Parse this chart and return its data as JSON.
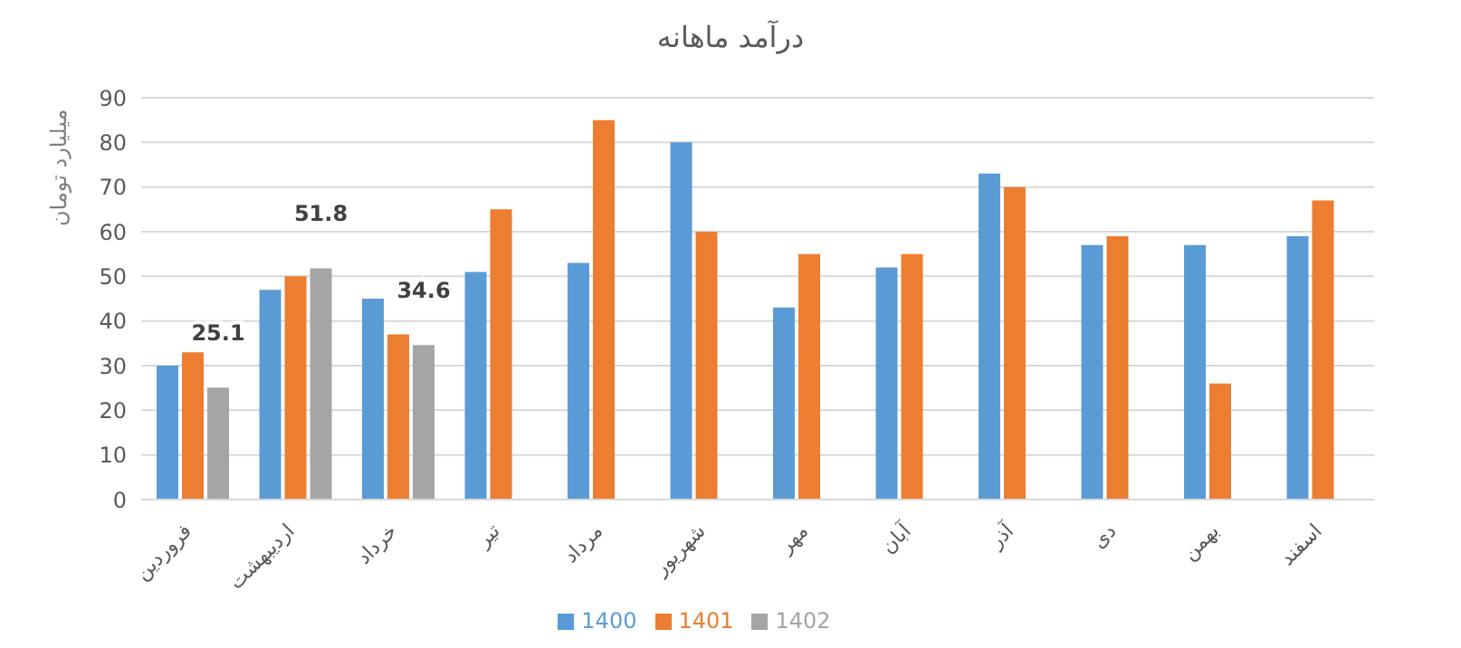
{
  "chart_data": {
    "type": "bar",
    "title": "درآمد ماهانه",
    "ylabel": "میلیارد تومان",
    "categories": [
      "فروردین",
      "اردیبهشت",
      "خرداد",
      "تیر",
      "مرداد",
      "شهریور",
      "مهر",
      "آبان",
      "آذر",
      "دی",
      "بهمن",
      "اسفند"
    ],
    "series": [
      {
        "name": "1400",
        "color": "#5b9bd5",
        "values": [
          30,
          47,
          45,
          51,
          53,
          80,
          43,
          52,
          73,
          57,
          57,
          59
        ]
      },
      {
        "name": "1401",
        "color": "#ed7d31",
        "values": [
          33,
          50,
          37,
          65,
          85,
          60,
          55,
          55,
          70,
          59,
          26,
          67
        ]
      },
      {
        "name": "1402",
        "color": "#a5a5a5",
        "values": [
          25.1,
          51.8,
          34.6,
          null,
          null,
          null,
          null,
          null,
          null,
          null,
          null,
          null
        ],
        "value_labels": [
          "25.1",
          "51.8",
          "34.6",
          null,
          null,
          null,
          null,
          null,
          null,
          null,
          null,
          null
        ]
      }
    ],
    "ylim": [
      0,
      90
    ],
    "yticks": [
      0,
      10,
      20,
      30,
      40,
      50,
      60,
      70,
      80,
      90
    ],
    "grid": "y",
    "legend": "bottom"
  }
}
